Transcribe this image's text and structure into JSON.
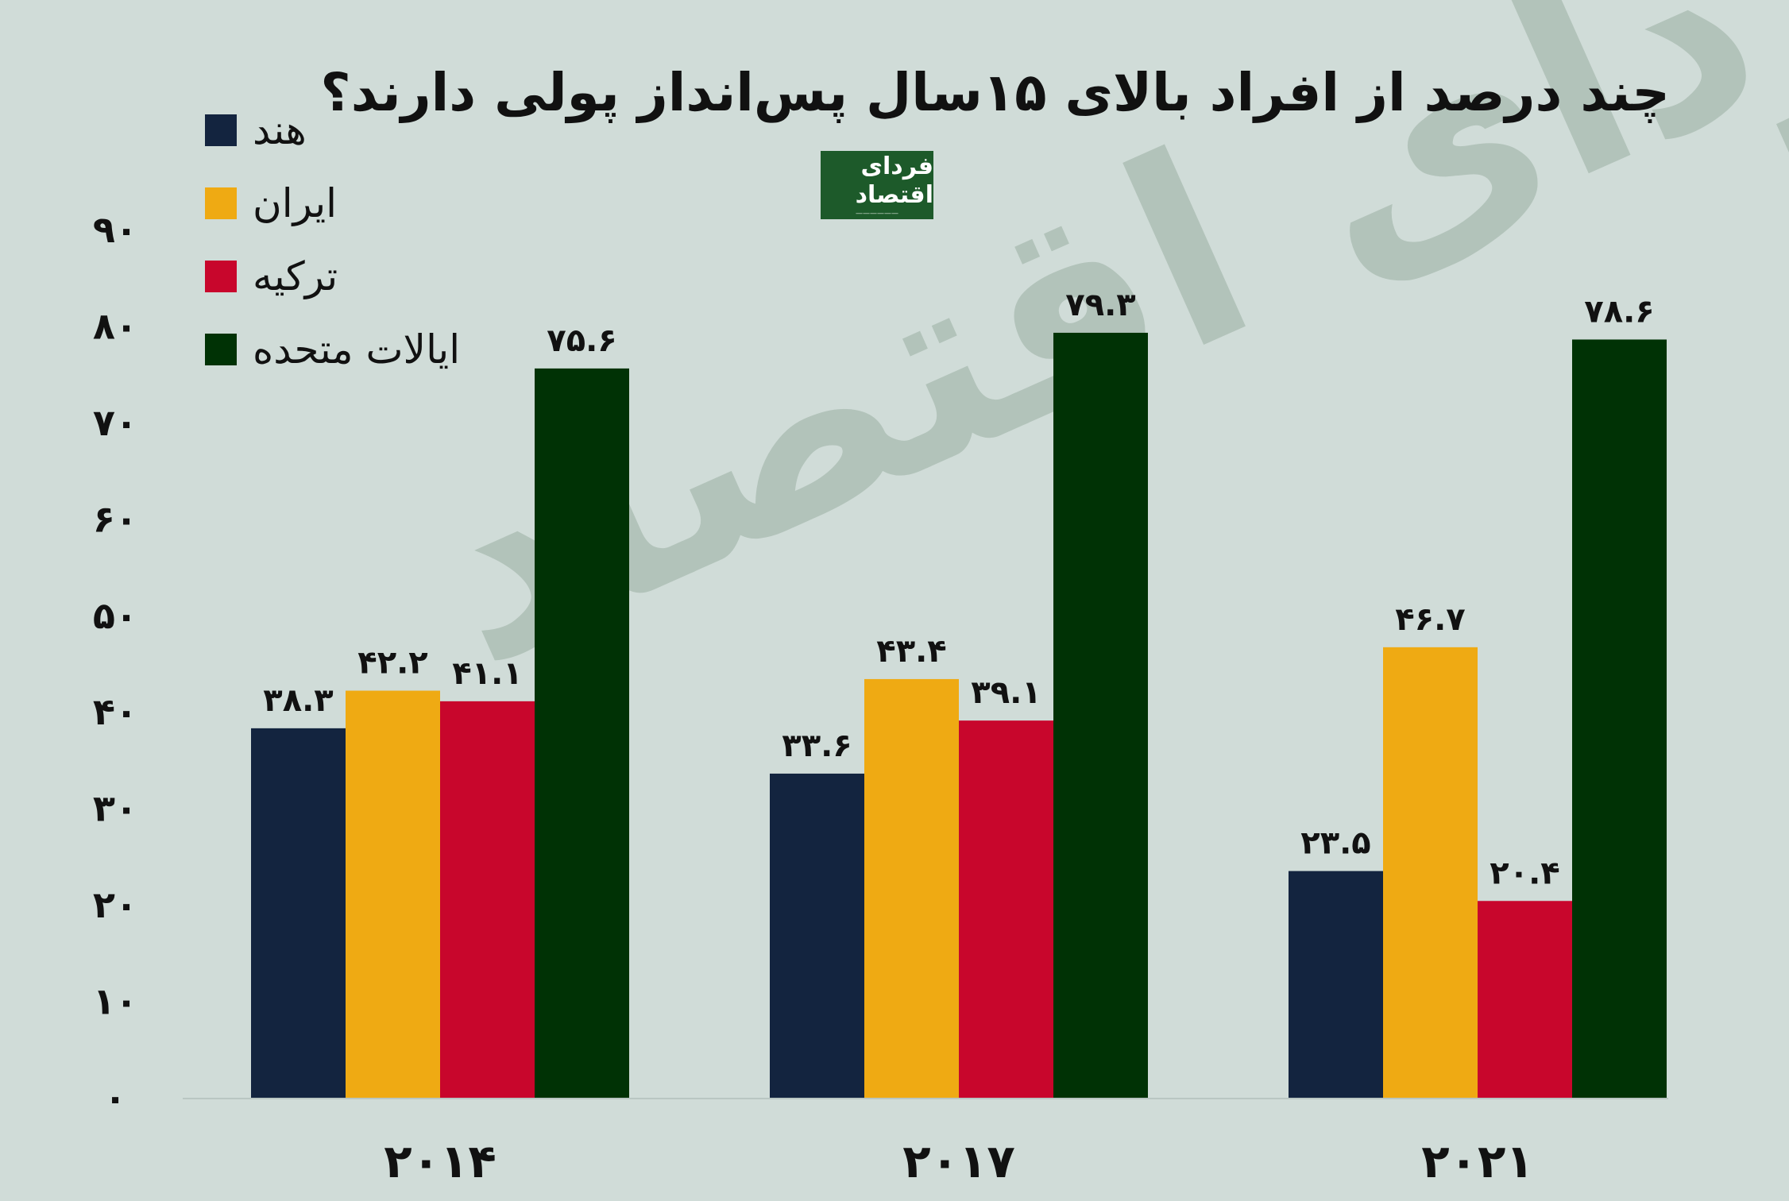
{
  "title": "چند درصد از افراد بالای ۱۵سال پس‌انداز پولی دارند؟",
  "logo": {
    "main": "فردای اقتصاد"
  },
  "watermark": "فردای اقتصاد",
  "colors": {
    "background": "#d0dcd8",
    "هند": "#13243f",
    "ایران": "#efaa13",
    "ترکیه": "#c8062c",
    "ایالات متحده": "#003205"
  },
  "chart_data": {
    "type": "bar",
    "categories": [
      "۲۰۱۴",
      "۲۰۱۷",
      "۲۰۲۱"
    ],
    "series": [
      {
        "name": "هند",
        "values": [
          38.3,
          33.6,
          23.5
        ],
        "labels": [
          "۳۸.۳",
          "۳۳.۶",
          "۲۳.۵"
        ]
      },
      {
        "name": "ایران",
        "values": [
          42.2,
          43.4,
          46.7
        ],
        "labels": [
          "۴۲.۲",
          "۴۳.۴",
          "۴۶.۷"
        ]
      },
      {
        "name": "ترکیه",
        "values": [
          41.1,
          39.1,
          20.4
        ],
        "labels": [
          "۴۱.۱",
          "۳۹.۱",
          "۲۰.۴"
        ]
      },
      {
        "name": "ایالات متحده",
        "values": [
          75.6,
          79.3,
          78.6
        ],
        "labels": [
          "۷۵.۶",
          "۷۹.۳",
          "۷۸.۶"
        ]
      }
    ],
    "yticks": [
      0,
      10,
      20,
      30,
      40,
      50,
      60,
      70,
      80,
      90
    ],
    "ytick_labels": [
      "۰",
      "۱۰",
      "۲۰",
      "۳۰",
      "۴۰",
      "۵۰",
      "۶۰",
      "۷۰",
      "۸۰",
      "۹۰"
    ],
    "ylim": [
      0,
      90
    ],
    "grid": false,
    "legend_position": "top-left"
  }
}
